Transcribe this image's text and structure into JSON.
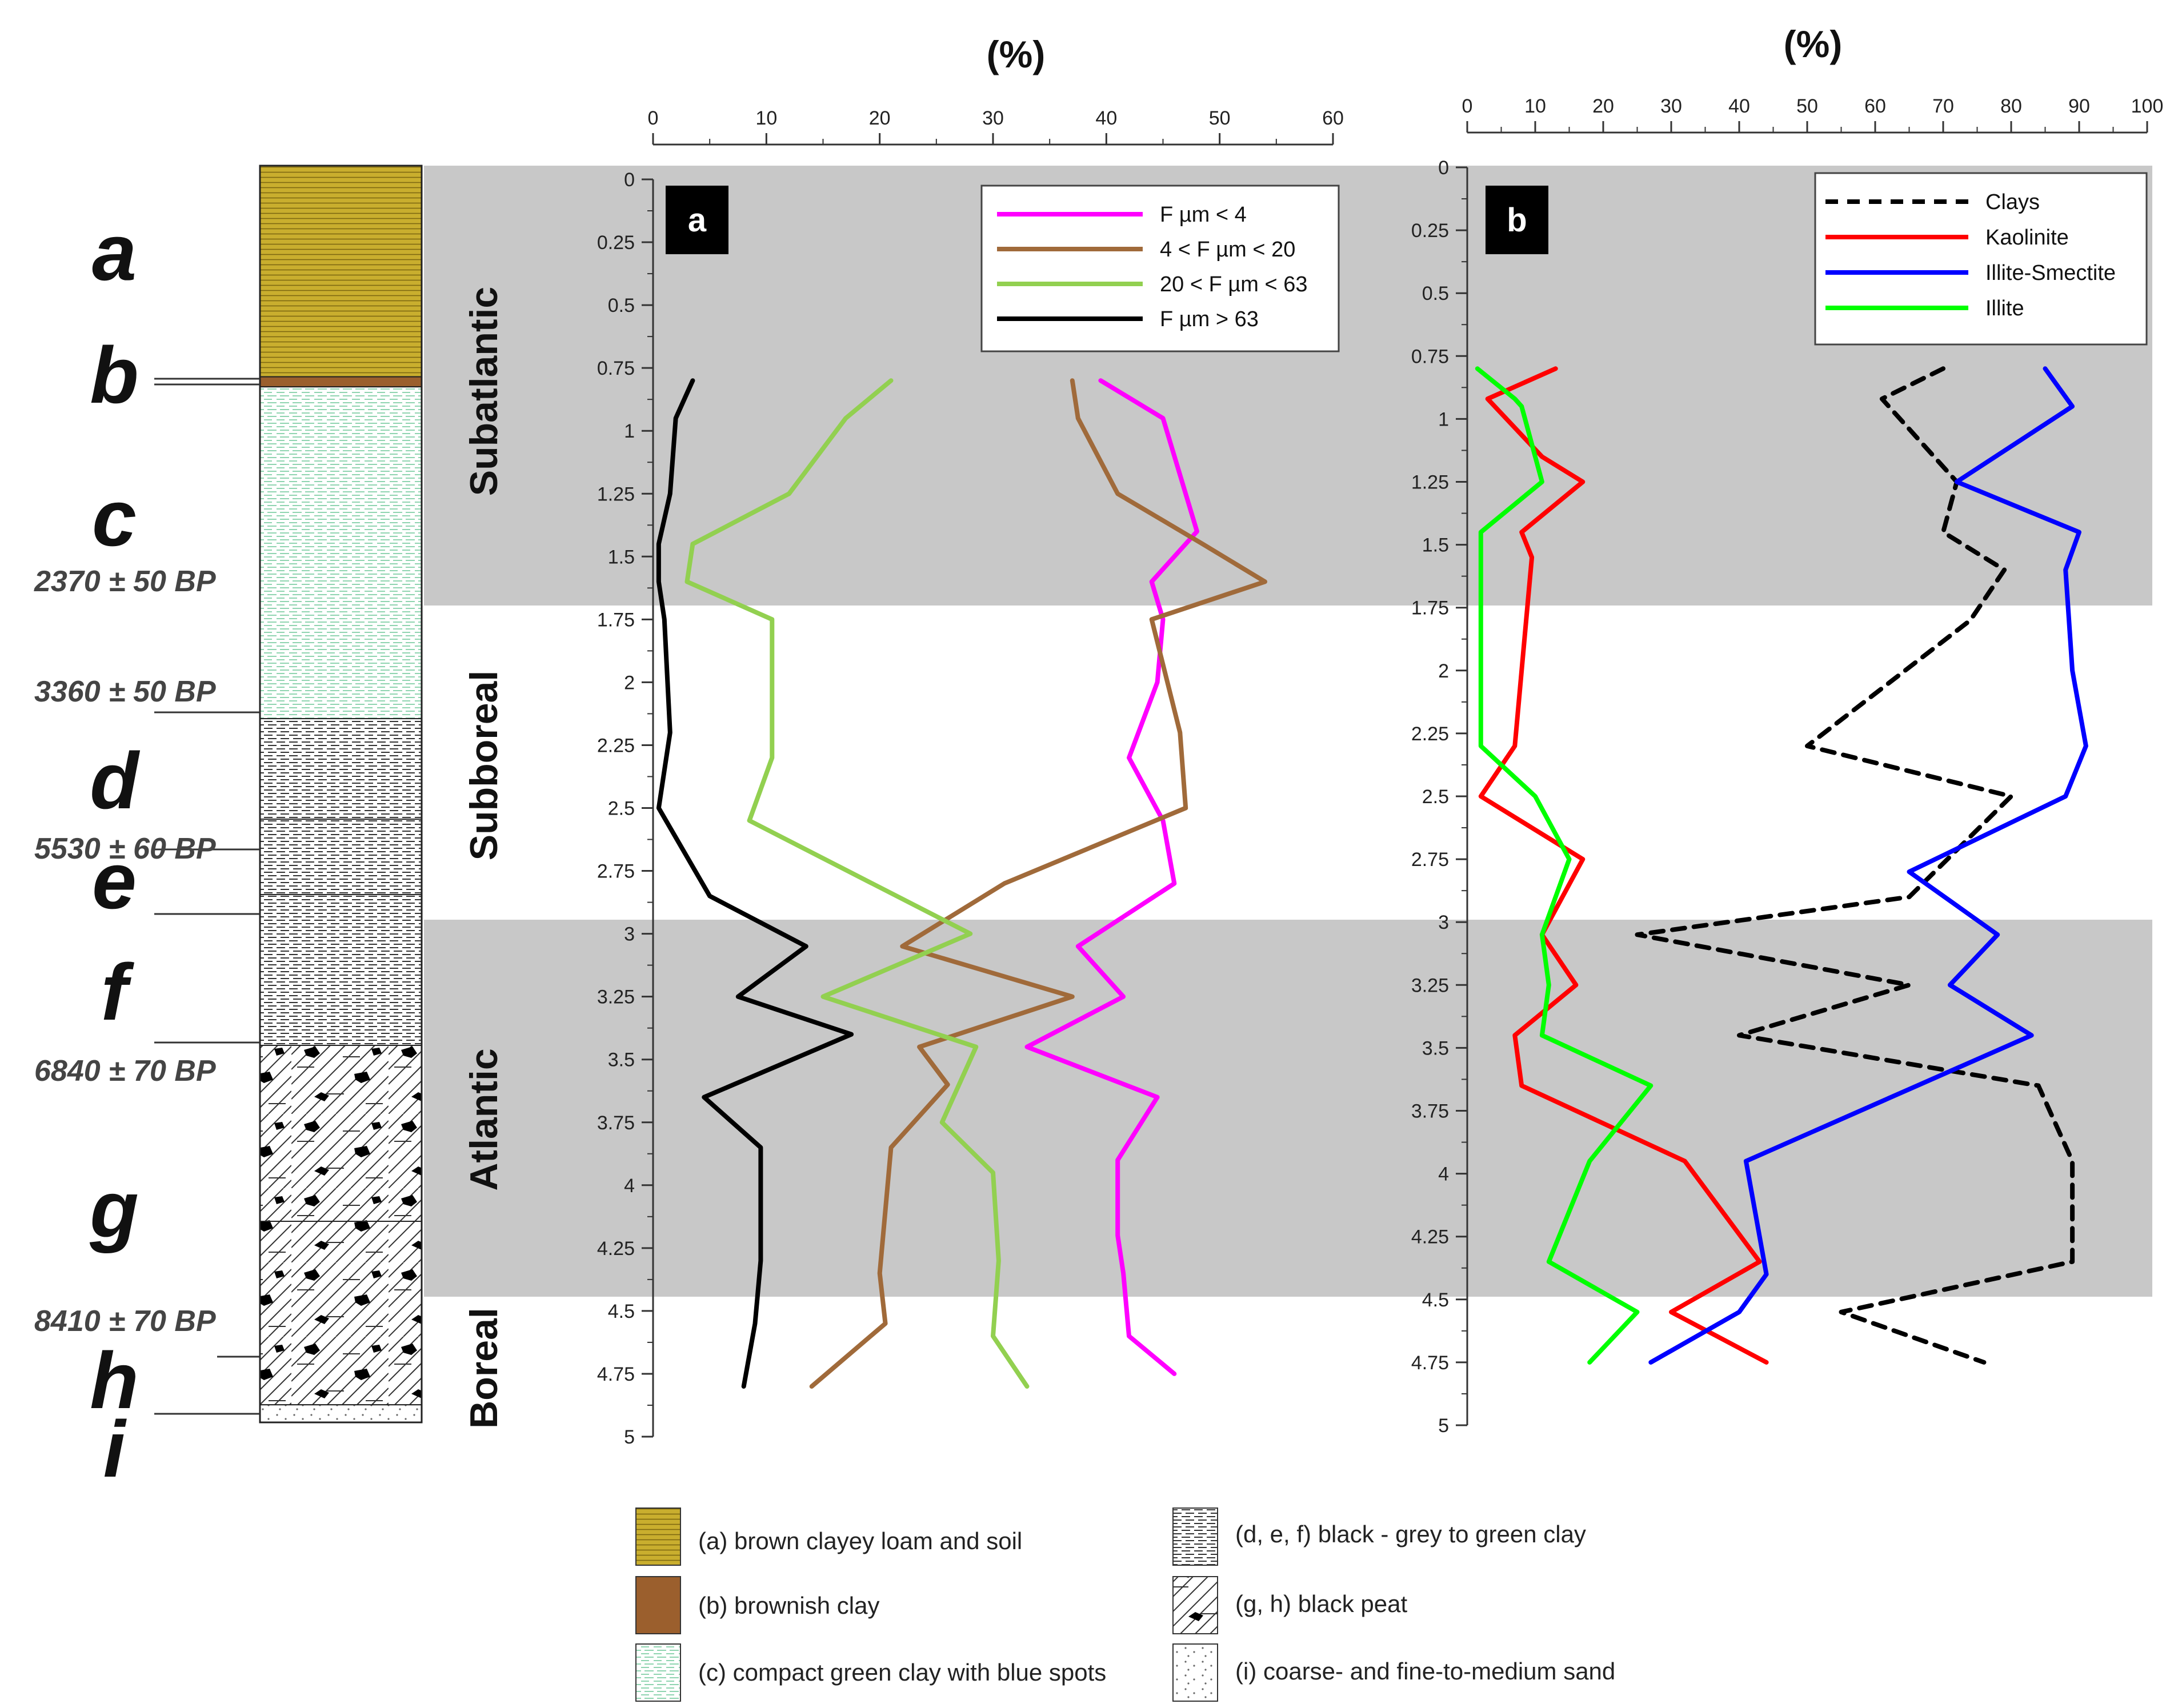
{
  "chart_data": [
    {
      "type": "line",
      "panel_label": "a",
      "title": "(%)",
      "xlim": [
        0,
        60
      ],
      "x_ticks": [
        "0",
        "10",
        "20",
        "30",
        "40",
        "50",
        "60"
      ],
      "ylim": [
        0,
        5
      ],
      "y_ticks": [
        "0",
        "0.25",
        "0.5",
        "0.75",
        "1",
        "1.25",
        "1.5",
        "1.75",
        "2",
        "2.25",
        "2.5",
        "2.75",
        "3",
        "3.25",
        "3.5",
        "3.75",
        "4",
        "4.25",
        "4.5",
        "4.75",
        "5"
      ],
      "legend_position": "top-right",
      "series": [
        {
          "name": "F µm < 4",
          "color": "#ff00ff",
          "dash": "solid",
          "points": [
            [
              39.5,
              0.8
            ],
            [
              45,
              0.95
            ],
            [
              48,
              1.4
            ],
            [
              44,
              1.6
            ],
            [
              45,
              1.75
            ],
            [
              44.5,
              2
            ],
            [
              42,
              2.3
            ],
            [
              45,
              2.55
            ],
            [
              46,
              2.8
            ],
            [
              37.5,
              3.05
            ],
            [
              41.5,
              3.25
            ],
            [
              33,
              3.45
            ],
            [
              44.5,
              3.65
            ],
            [
              41,
              3.9
            ],
            [
              41,
              4.2
            ],
            [
              41.5,
              4.35
            ],
            [
              42,
              4.6
            ],
            [
              46,
              4.75
            ]
          ]
        },
        {
          "name": "4 < F µm < 20",
          "color": "#a06a3a",
          "dash": "solid",
          "points": [
            [
              37,
              0.8
            ],
            [
              37.5,
              0.95
            ],
            [
              41,
              1.25
            ],
            [
              48.5,
              1.45
            ],
            [
              54,
              1.6
            ],
            [
              44,
              1.75
            ],
            [
              46.5,
              2.2
            ],
            [
              47,
              2.5
            ],
            [
              31,
              2.8
            ],
            [
              22,
              3.05
            ],
            [
              37,
              3.25
            ],
            [
              23.5,
              3.45
            ],
            [
              26,
              3.6
            ],
            [
              21,
              3.85
            ],
            [
              20,
              4.35
            ],
            [
              20.5,
              4.55
            ],
            [
              14,
              4.8
            ]
          ]
        },
        {
          "name": "20 < F µm < 63",
          "color": "#92d050",
          "dash": "solid",
          "points": [
            [
              21,
              0.8
            ],
            [
              17,
              0.95
            ],
            [
              12,
              1.25
            ],
            [
              3.5,
              1.45
            ],
            [
              3,
              1.6
            ],
            [
              10.5,
              1.75
            ],
            [
              10.5,
              2.3
            ],
            [
              8.5,
              2.55
            ],
            [
              28,
              3.0
            ],
            [
              15,
              3.25
            ],
            [
              28.5,
              3.45
            ],
            [
              25.5,
              3.75
            ],
            [
              30,
              3.95
            ],
            [
              30.5,
              4.3
            ],
            [
              30,
              4.6
            ],
            [
              33,
              4.8
            ]
          ]
        },
        {
          "name": "F µm > 63",
          "color": "#000000",
          "dash": "solid",
          "points": [
            [
              3.5,
              0.8
            ],
            [
              2,
              0.95
            ],
            [
              1.5,
              1.25
            ],
            [
              0.5,
              1.45
            ],
            [
              0.5,
              1.6
            ],
            [
              1,
              1.75
            ],
            [
              1.5,
              2.2
            ],
            [
              0.5,
              2.5
            ],
            [
              5,
              2.85
            ],
            [
              13.5,
              3.05
            ],
            [
              7.5,
              3.25
            ],
            [
              17.5,
              3.4
            ],
            [
              4.5,
              3.65
            ],
            [
              9.5,
              3.85
            ],
            [
              9.5,
              4.3
            ],
            [
              9,
              4.55
            ],
            [
              8,
              4.8
            ]
          ]
        }
      ]
    },
    {
      "type": "line",
      "panel_label": "b",
      "title": "(%)",
      "xlim": [
        0,
        100
      ],
      "x_ticks": [
        "0",
        "10",
        "20",
        "30",
        "40",
        "50",
        "60",
        "70",
        "80",
        "90",
        "100"
      ],
      "ylim": [
        0,
        5
      ],
      "y_ticks": [
        "0",
        "0.25",
        "0.5",
        "0.75",
        "1",
        "1.25",
        "1.5",
        "1.75",
        "2",
        "2.25",
        "2.5",
        "2.75",
        "3",
        "3.25",
        "3.5",
        "3.75",
        "4",
        "4.25",
        "4.5",
        "4.75",
        "5"
      ],
      "legend_position": "top-right",
      "series": [
        {
          "name": "Clays",
          "color": "#000000",
          "dash": "dashed",
          "points": [
            [
              70,
              0.8
            ],
            [
              61,
              0.92
            ],
            [
              72,
              1.25
            ],
            [
              70,
              1.45
            ],
            [
              79,
              1.6
            ],
            [
              74,
              1.8
            ],
            [
              50,
              2.3
            ],
            [
              80,
              2.5
            ],
            [
              65,
              2.9
            ],
            [
              25,
              3.05
            ],
            [
              65,
              3.25
            ],
            [
              40,
              3.45
            ],
            [
              84,
              3.65
            ],
            [
              89,
              3.95
            ],
            [
              89,
              4.35
            ],
            [
              55,
              4.55
            ],
            [
              76,
              4.75
            ]
          ]
        },
        {
          "name": "Kaolinite",
          "color": "#ff0000",
          "dash": "solid",
          "points": [
            [
              13,
              0.8
            ],
            [
              3,
              0.92
            ],
            [
              11,
              1.15
            ],
            [
              17,
              1.25
            ],
            [
              8,
              1.45
            ],
            [
              9.5,
              1.55
            ],
            [
              8,
              2.0
            ],
            [
              7,
              2.3
            ],
            [
              2,
              2.5
            ],
            [
              17,
              2.75
            ],
            [
              11,
              3.05
            ],
            [
              16,
              3.25
            ],
            [
              7,
              3.45
            ],
            [
              8,
              3.65
            ],
            [
              32,
              3.95
            ],
            [
              43,
              4.35
            ],
            [
              30,
              4.55
            ],
            [
              44,
              4.75
            ]
          ]
        },
        {
          "name": "Illite-Smectite",
          "color": "#0000ff",
          "dash": "solid",
          "points": [
            [
              85,
              0.8
            ],
            [
              89,
              0.95
            ],
            [
              72,
              1.25
            ],
            [
              90,
              1.45
            ],
            [
              88,
              1.6
            ],
            [
              89,
              2.0
            ],
            [
              91,
              2.3
            ],
            [
              88,
              2.5
            ],
            [
              65,
              2.8
            ],
            [
              78,
              3.05
            ],
            [
              71,
              3.25
            ],
            [
              83,
              3.45
            ],
            [
              41,
              3.95
            ],
            [
              44,
              4.4
            ],
            [
              40,
              4.55
            ],
            [
              27,
              4.75
            ]
          ]
        },
        {
          "name": "Illite",
          "color": "#00ff00",
          "dash": "solid",
          "points": [
            [
              1.5,
              0.8
            ],
            [
              7,
              0.92
            ],
            [
              8,
              0.95
            ],
            [
              11,
              1.25
            ],
            [
              2,
              1.45
            ],
            [
              2,
              1.6
            ],
            [
              2,
              2.0
            ],
            [
              2,
              2.3
            ],
            [
              10,
              2.5
            ],
            [
              15,
              2.75
            ],
            [
              11,
              3.05
            ],
            [
              12,
              3.25
            ],
            [
              11,
              3.45
            ],
            [
              27,
              3.65
            ],
            [
              18,
              3.95
            ],
            [
              12,
              4.35
            ],
            [
              25,
              4.55
            ],
            [
              18,
              4.75
            ]
          ]
        }
      ]
    }
  ],
  "stratigraphy": {
    "layers": [
      {
        "letter": "a",
        "from": 0.0,
        "to": 0.84
      },
      {
        "letter": "b",
        "from": 0.84,
        "to": 0.88
      },
      {
        "letter": "c",
        "from": 0.88,
        "to": 2.2
      },
      {
        "letter": "d",
        "from": 2.2,
        "to": 2.6
      },
      {
        "letter": "e",
        "from": 2.6,
        "to": 2.9
      },
      {
        "letter": "f",
        "from": 2.9,
        "to": 3.5
      },
      {
        "letter": "g",
        "from": 3.5,
        "to": 4.2
      },
      {
        "letter": "h",
        "from": 4.2,
        "to": 4.93
      },
      {
        "letter": "i",
        "from": 4.93,
        "to": 5.0
      }
    ],
    "dates": [
      "2370 ± 50 BP",
      "3360 ± 50 BP",
      "5530 ± 60 BP",
      "6840 ± 70 BP",
      "8410 ± 70 BP"
    ],
    "periods": [
      {
        "name": "Subatlantic",
        "from": 0.0,
        "to": 1.75,
        "shaded": true
      },
      {
        "name": "Subboreal",
        "from": 1.75,
        "to": 3.0,
        "shaded": false
      },
      {
        "name": "Atlantic",
        "from": 3.0,
        "to": 4.5,
        "shaded": true
      },
      {
        "name": "Boreal",
        "from": 4.5,
        "to": 5.0,
        "shaded": false
      }
    ]
  },
  "legend": {
    "items": [
      "(a) brown clayey loam and soil",
      "(b) brownish clay",
      "(c) compact green clay with blue spots",
      "(d, e, f) black - grey to green clay",
      "(g, h) black peat",
      "(i) coarse- and fine-to-medium sand"
    ]
  },
  "colors": {
    "shade": "#c8c8c8",
    "layer_a": "#c9ae2e",
    "layer_b": "#9b5f2d",
    "layer_c_line": "#8fd4b0",
    "panel_label_bg": "#000000"
  }
}
